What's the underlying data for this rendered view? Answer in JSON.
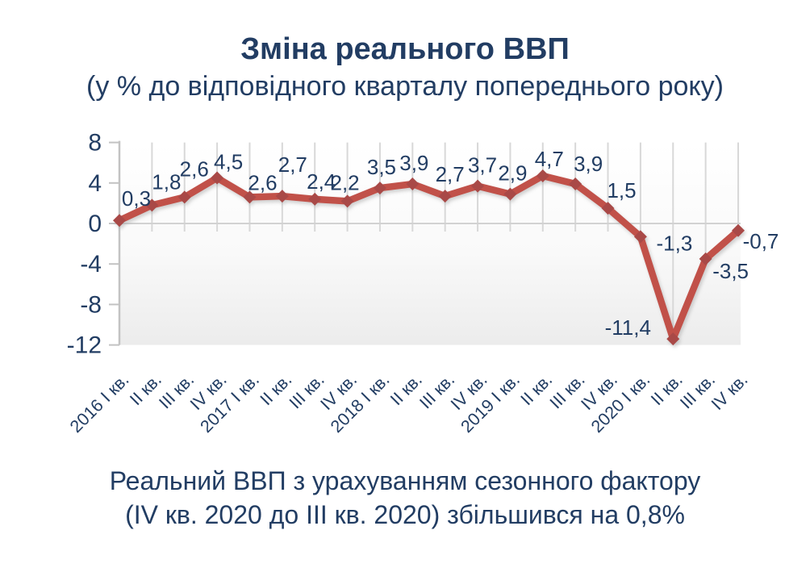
{
  "header": {
    "title": "Зміна реального ВВП",
    "subtitle": "(у % до відповідного кварталу попереднього року)"
  },
  "footer": {
    "line1": "Реальний ВВП з урахуванням сезонного фактору",
    "line2": "(IV кв. 2020 до III кв. 2020) збільшився на 0,8%"
  },
  "colors": {
    "text": "#223d63",
    "line": "#c15149",
    "marker": "#a94a46",
    "grid": "#d8d8d8",
    "axis": "#c3c3c3",
    "zero_line": "#d2d2d2",
    "plot_bg_top": "#ffffff",
    "plot_bg_bottom": "#ececec"
  },
  "chart_data": {
    "type": "line",
    "title": "Зміна реального ВВП",
    "subtitle": "(у % до відповідного кварталу попереднього року)",
    "xlabel": "",
    "ylabel": "",
    "ylim": [
      -12,
      8
    ],
    "y_ticks": [
      8,
      4,
      0,
      -4,
      -8,
      -12
    ],
    "grid": true,
    "legend": "none",
    "categories": [
      "2016 I кв.",
      "II кв.",
      "III кв.",
      "IV кв.",
      "2017 I кв.",
      "II кв.",
      "III кв.",
      "IV кв.",
      "2018 I кв.",
      "II кв.",
      "III кв.",
      "IV кв.",
      "2019 I кв.",
      "II кв.",
      "III кв.",
      "IV кв.",
      "2020 I кв.",
      "II кв.",
      "III кв.",
      "IV кв."
    ],
    "values": [
      0.3,
      1.8,
      2.6,
      4.5,
      2.6,
      2.7,
      2.4,
      2.2,
      3.5,
      3.9,
      2.7,
      3.7,
      2.9,
      4.7,
      3.9,
      1.5,
      -1.3,
      -11.4,
      -3.5,
      -0.7
    ],
    "point_labels": [
      "0,3",
      "1,8",
      "2,6",
      "4,5",
      "2,6",
      "2,7",
      "2,4",
      "2,2",
      "3,5",
      "3,9",
      "2,7",
      "3,7",
      "2,9",
      "4,7",
      "3,9",
      "1,5",
      "-1,3",
      "-11,4",
      "-3,5",
      "-0,7"
    ]
  }
}
